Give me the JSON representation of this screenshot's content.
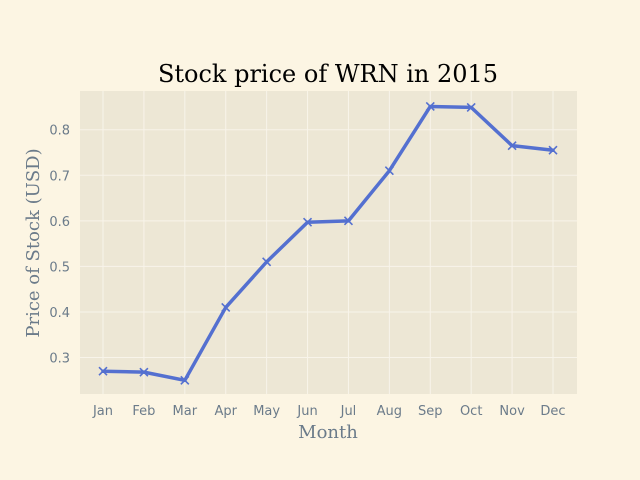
{
  "chart_data": {
    "type": "line",
    "title": "Stock price of WRN in 2015",
    "xlabel": "Month",
    "ylabel": "Price of Stock (USD)",
    "categories": [
      "Jan",
      "Feb",
      "Mar",
      "Apr",
      "May",
      "Jun",
      "Jul",
      "Aug",
      "Sep",
      "Oct",
      "Nov",
      "Dec"
    ],
    "series": [
      {
        "values": [
          0.27,
          0.268,
          0.25,
          0.41,
          0.51,
          0.597,
          0.6,
          0.71,
          0.851,
          0.849,
          0.765,
          0.755
        ]
      }
    ],
    "ylim": [
      0.22,
      0.885
    ],
    "yticks": [
      0.3,
      0.4,
      0.5,
      0.6,
      0.7,
      0.8
    ],
    "ytick_labels": [
      "0.3",
      "0.4",
      "0.5",
      "0.6",
      "0.7",
      "0.8"
    ],
    "grid": true,
    "marker": "x",
    "colors": {
      "figure_background": "#fcf5e3",
      "plot_background": "#ede7d5",
      "grid": "#f8f4ea",
      "line": "#5470d0",
      "tick_text": "#6b7b8a"
    }
  }
}
